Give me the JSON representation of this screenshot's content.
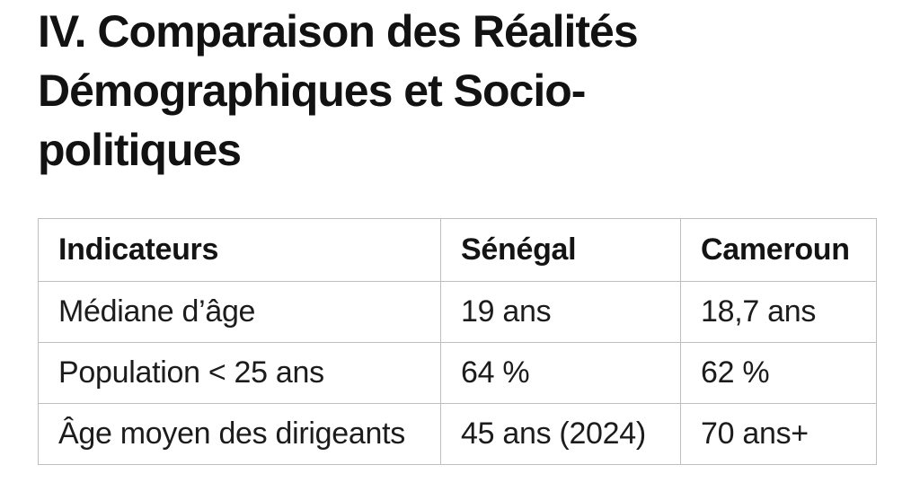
{
  "page": {
    "background": "#ffffff",
    "text_color": "#1c1c1c",
    "border_color": "#bfbfbf"
  },
  "heading": {
    "text": "IV. Comparaison des Réalités Démographiques et Socio-politiques",
    "lines": [
      "IV. Comparaison des Réalités",
      "Démographiques et Socio-",
      "politiques"
    ]
  },
  "table": {
    "columns": [
      "Indicateurs",
      "Sénégal",
      "Cameroun"
    ],
    "rows": [
      {
        "indicator": "Médiane d’âge",
        "senegal": "19 ans",
        "cameroun": "18,7 ans"
      },
      {
        "indicator": "Population < 25 ans",
        "senegal": "64 %",
        "cameroun": "62 %"
      },
      {
        "indicator": "Âge moyen des dirigeants",
        "senegal": "45 ans (2024)",
        "cameroun": "70 ans+"
      }
    ]
  }
}
